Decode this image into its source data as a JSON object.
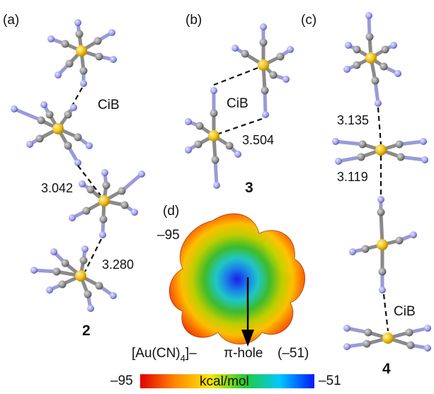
{
  "panels": {
    "a": {
      "label": "(a)",
      "compound": "2",
      "dist1": "3.042",
      "dist2": "3.280",
      "cib": "CiB"
    },
    "b": {
      "label": "(b)",
      "compound": "3",
      "dist": "3.504",
      "cib": "CiB"
    },
    "c": {
      "label": "(c)",
      "compound": "4",
      "dist1": "3.135",
      "dist2": "3.119",
      "cib": "CiB"
    },
    "d": {
      "label": "(d)",
      "min_value": "–95",
      "anion": "[Au(CN)",
      "anion_sub": "4",
      "anion_sup": "]–",
      "pi_hole": "π-hole",
      "pi_hole_value": "(–51)"
    }
  },
  "colorbar": {
    "min": "–95",
    "max": "–51",
    "unit": "kcal/mol",
    "colors": [
      "#e00000",
      "#ff8800",
      "#ffe600",
      "#22cc33",
      "#00c8ff",
      "#0018ff"
    ]
  },
  "atom_colors": {
    "gold": "#f2c21a",
    "carbon": "#8c8c8c",
    "nitrogen": "#9c9ce6"
  }
}
